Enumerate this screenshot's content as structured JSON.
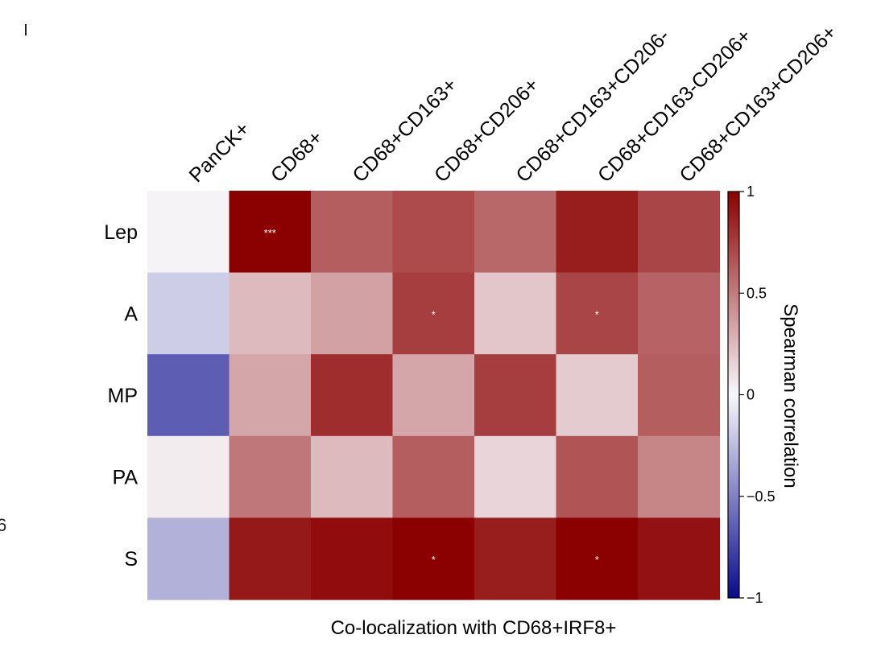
{
  "chart_data": {
    "type": "heatmap",
    "columns": [
      "PanCK+",
      "CD68+",
      "CD68+CD163+",
      "CD68+CD206+",
      "CD68+CD163+CD206-",
      "CD68+CD163-CD206+",
      "CD68+CD163+CD206+"
    ],
    "rows": [
      "Lep",
      "A",
      "MP",
      "PA",
      "S"
    ],
    "values": [
      [
        0.02,
        1.0,
        0.62,
        0.7,
        0.58,
        0.88,
        0.72
      ],
      [
        -0.18,
        0.25,
        0.35,
        0.75,
        0.2,
        0.72,
        0.6
      ],
      [
        -0.65,
        0.33,
        0.82,
        0.33,
        0.75,
        0.18,
        0.62
      ],
      [
        0.05,
        0.52,
        0.25,
        0.62,
        0.14,
        0.66,
        0.46
      ],
      [
        -0.3,
        0.9,
        0.95,
        1.0,
        0.88,
        1.0,
        0.93
      ]
    ],
    "annotations": [
      {
        "row": 0,
        "col": 1,
        "text": "***"
      },
      {
        "row": 1,
        "col": 3,
        "text": "*"
      },
      {
        "row": 1,
        "col": 5,
        "text": "*"
      },
      {
        "row": 4,
        "col": 3,
        "text": "*"
      },
      {
        "row": 4,
        "col": 5,
        "text": "*"
      }
    ],
    "xlabel": "Co-localization with CD68+IRF8+",
    "colorbar": {
      "label": "Spearman correlation",
      "range": [
        -1,
        1
      ],
      "ticks": [
        1,
        0.5,
        0,
        -0.5,
        -1
      ],
      "tick_labels": [
        "1",
        "0.5",
        "0",
        "−0.5",
        "−1"
      ],
      "colors": {
        "low": "#0a0a8c",
        "mid": "#f8f8fc",
        "high": "#8b0000"
      }
    }
  },
  "edge_marks": {
    "left_digit": "6"
  }
}
